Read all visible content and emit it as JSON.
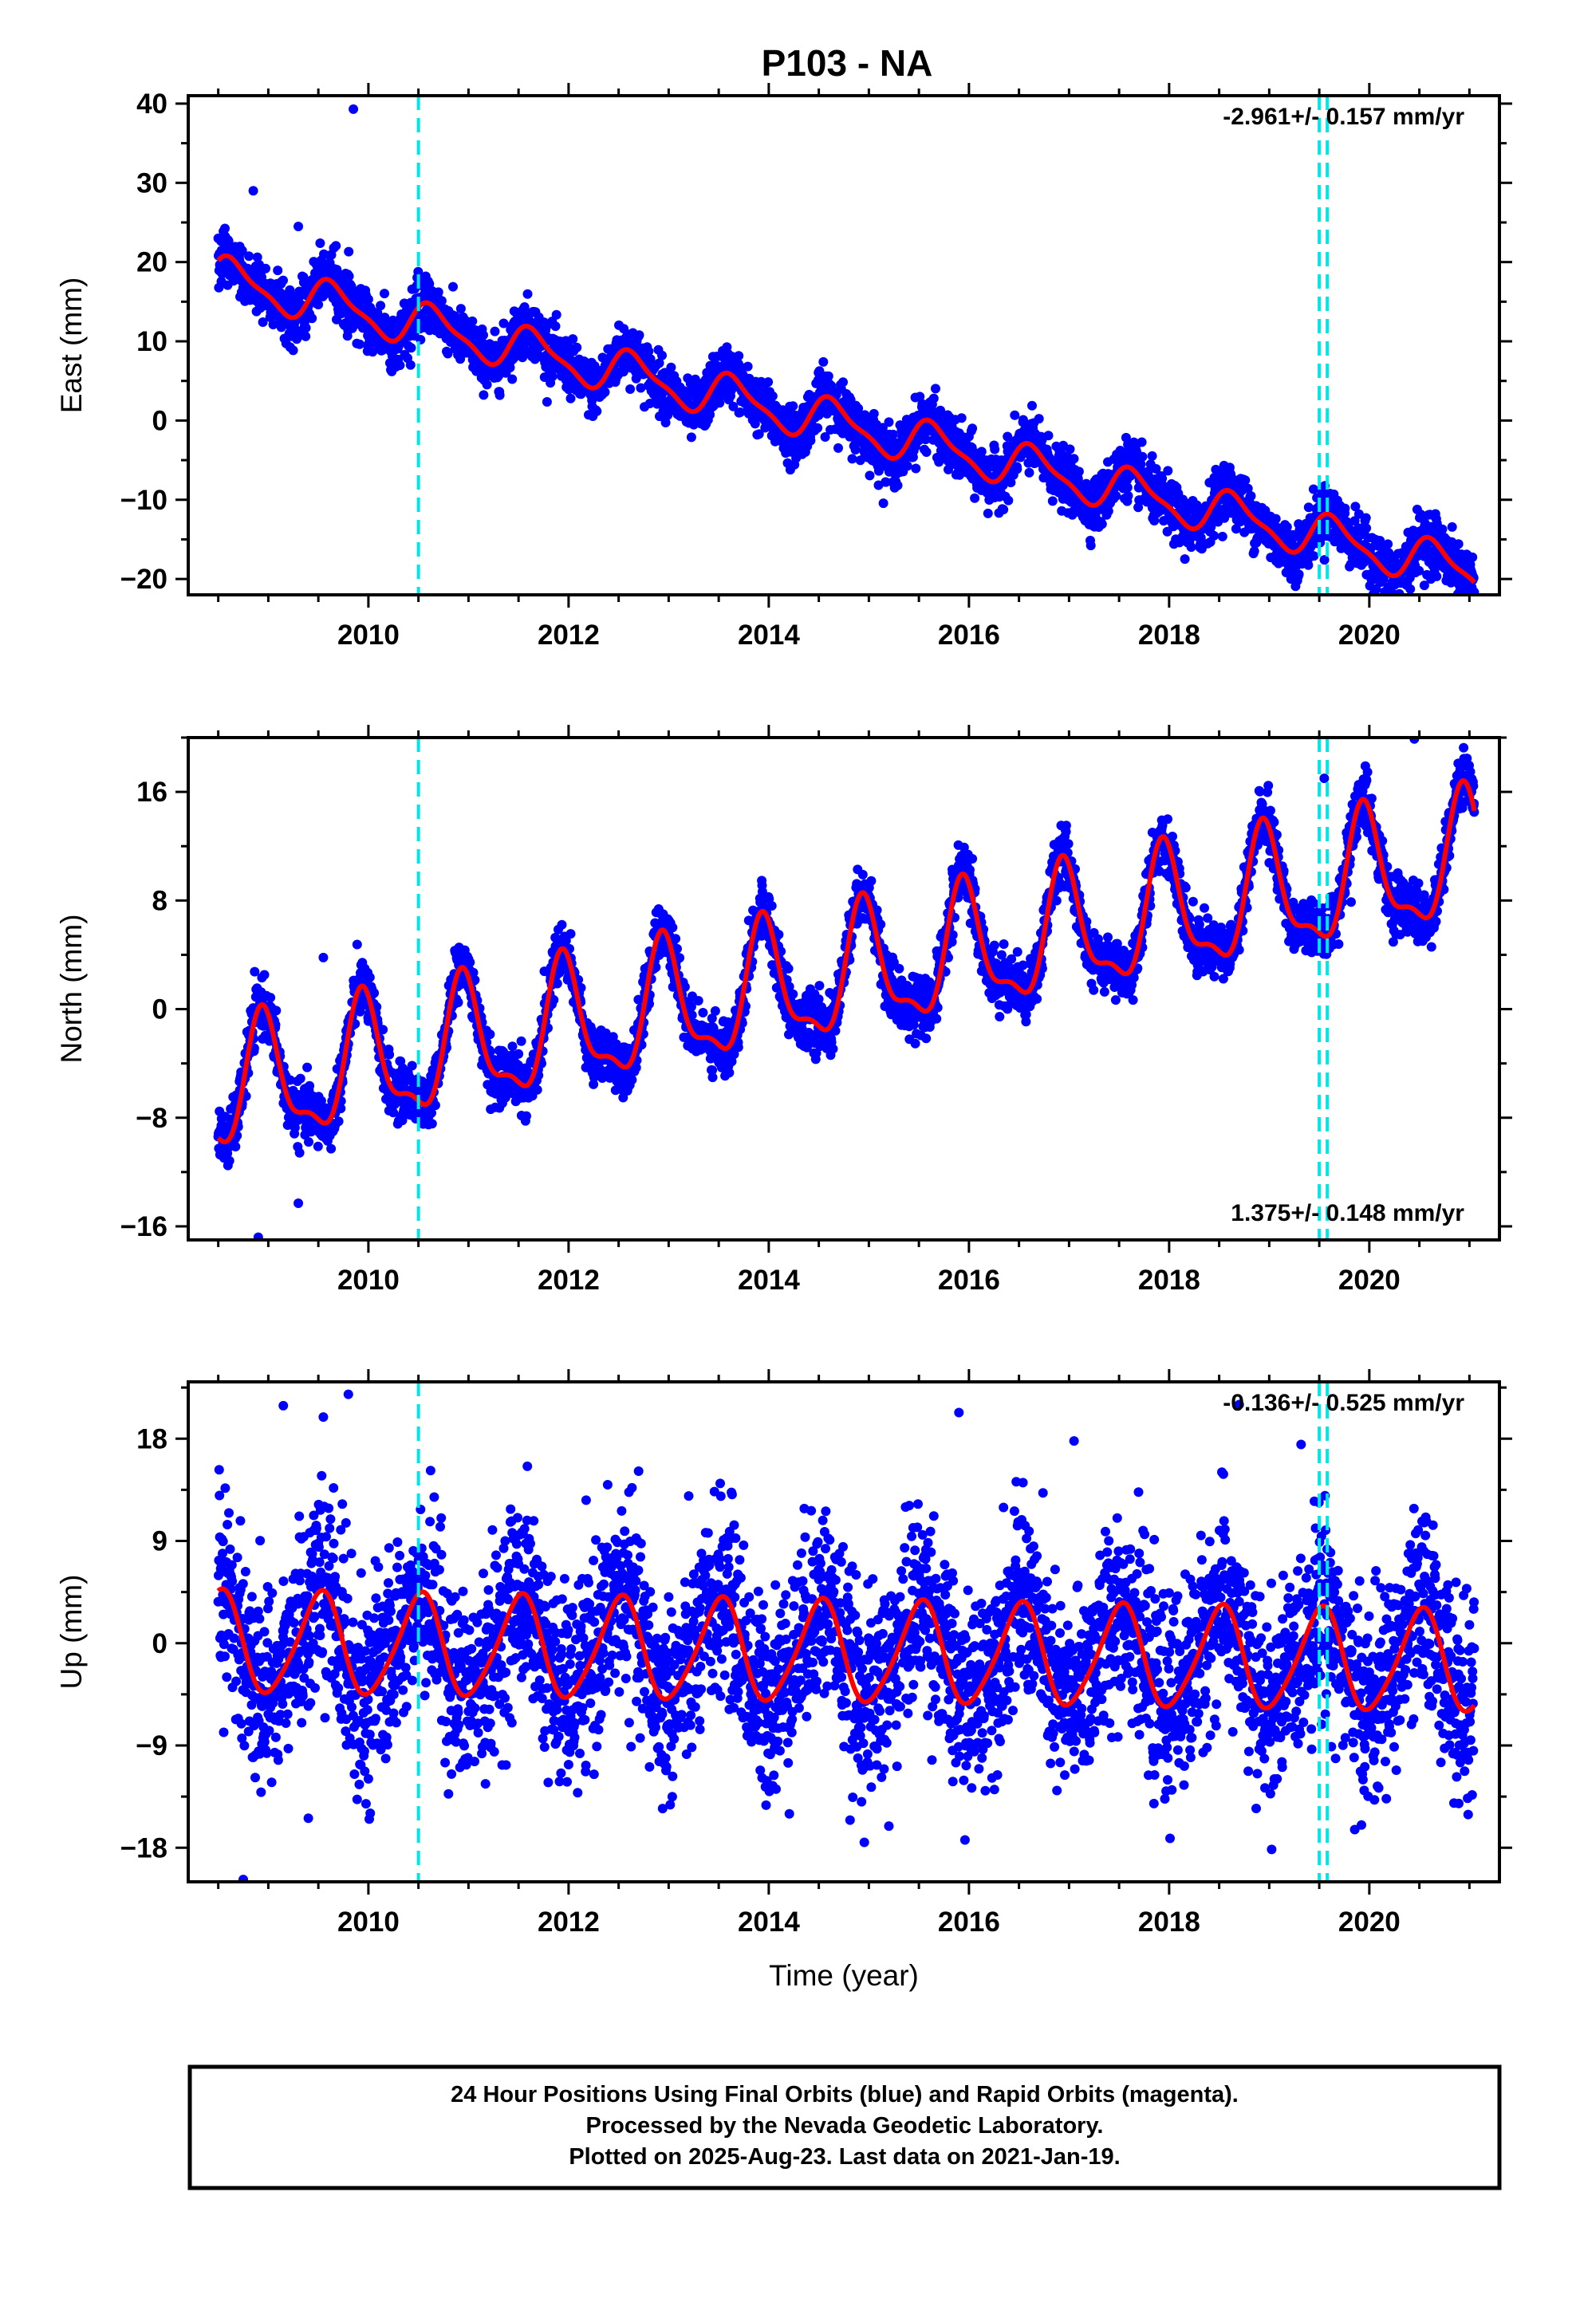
{
  "title": "P103 - NA",
  "colors": {
    "final_orbits": "#0000ff",
    "model": "#ff0000",
    "offsets": "#00e5e5",
    "frame": "#000000"
  },
  "caption": {
    "line1": "24 Hour Positions Using Final Orbits (blue) and Rapid Orbits (magenta).",
    "line2": "Processed by the Nevada Geodetic Laboratory.",
    "line3": "Plotted on 2025-Aug-23. Last data on 2021-Jan-19."
  },
  "chart_data": [
    {
      "type": "scatter",
      "component": "east",
      "ylabel": "East (mm)",
      "xlabel": "",
      "xlim": [
        2008.2,
        2021.3
      ],
      "ylim": [
        -22,
        41
      ],
      "xticks": [
        2010,
        2012,
        2014,
        2016,
        2018,
        2020
      ],
      "xtick_labels": [
        "2010",
        "2012",
        "2014",
        "2016",
        "2018",
        "2020"
      ],
      "yticks": [
        40,
        30,
        20,
        10,
        0,
        -10,
        -20
      ],
      "ytick_labels": [
        "40",
        "30",
        "20",
        "10",
        "0",
        "−10",
        "−20"
      ],
      "rate_text": "-2.961+/- 0.157 mm/yr",
      "rate_position": "top-right",
      "series_points": "Final Orbits (blue)",
      "data_start": 2008.5,
      "data_end": 2021.05,
      "model": {
        "offset": 18.0,
        "rate": -2.961,
        "annual_sin": 2.1,
        "annual_cos": 1.5,
        "semiannual_sin": 0.4,
        "semiannual_cos": 0.7
      },
      "point_scatter": 1.7,
      "outliers": [
        [
          2009.85,
          39.3
        ],
        [
          2008.85,
          29.0
        ],
        [
          2009.3,
          24.5
        ],
        [
          2010.7,
          16.2
        ],
        [
          2020.55,
          -20.8
        ]
      ],
      "offset_lines": [
        2010.5,
        2019.5,
        2019.58
      ]
    },
    {
      "type": "scatter",
      "component": "north",
      "ylabel": "North (mm)",
      "xlabel": "",
      "xlim": [
        2008.2,
        2021.3
      ],
      "ylim": [
        -17,
        20
      ],
      "xticks": [
        2010,
        2012,
        2014,
        2016,
        2018,
        2020
      ],
      "xtick_labels": [
        "2010",
        "2012",
        "2014",
        "2016",
        "2018",
        "2020"
      ],
      "yticks": [
        16,
        8,
        0,
        -8,
        -16
      ],
      "ytick_labels": [
        "16",
        "8",
        "0",
        "−8",
        "−16"
      ],
      "rate_text": "1.375+/- 0.148 mm/yr",
      "rate_position": "bottom-right",
      "series_points": "Final Orbits (blue)",
      "data_start": 2008.5,
      "data_end": 2021.05,
      "model": {
        "offset": -6.2,
        "rate": 1.375,
        "annual_sin": 1.3,
        "annual_cos": -4.2,
        "semiannual_sin": -1.3,
        "semiannual_cos": 0.9
      },
      "point_scatter": 1.0,
      "outliers": [
        [
          2008.9,
          -16.8
        ],
        [
          2009.3,
          -14.3
        ],
        [
          2009.55,
          3.8
        ],
        [
          2020.45,
          19.9
        ],
        [
          2019.55,
          17.0
        ]
      ],
      "offset_lines": [
        2010.5,
        2019.5,
        2019.58
      ]
    },
    {
      "type": "scatter",
      "component": "up",
      "ylabel": "Up (mm)",
      "xlabel": "Time (year)",
      "xlim": [
        2008.2,
        2021.3
      ],
      "ylim": [
        -21,
        23
      ],
      "xticks": [
        2010,
        2012,
        2014,
        2016,
        2018,
        2020
      ],
      "xtick_labels": [
        "2010",
        "2012",
        "2014",
        "2016",
        "2018",
        "2020"
      ],
      "yticks": [
        18,
        9,
        0,
        -9,
        -18
      ],
      "ytick_labels": [
        "18",
        "9",
        "0",
        "−9",
        "−18"
      ],
      "rate_text": "-0.136+/- 0.525 mm/yr",
      "rate_position": "top-right",
      "series_points": "Final Orbits (blue)",
      "data_start": 2008.5,
      "data_end": 2021.05,
      "model": {
        "offset": 0.0,
        "rate": -0.136,
        "annual_sin": 0.3,
        "annual_cos": 4.4,
        "semiannual_sin": 0.6,
        "semiannual_cos": 0.2
      },
      "point_scatter": 4.2,
      "outliers": [
        [
          2009.8,
          21.9
        ],
        [
          2009.15,
          20.9
        ],
        [
          2009.55,
          19.9
        ],
        [
          2015.9,
          20.3
        ],
        [
          2008.75,
          -20.8
        ],
        [
          2015.2,
          -16.1
        ],
        [
          2009.4,
          -15.4
        ],
        [
          2018.7,
          21.0
        ],
        [
          2017.05,
          17.8
        ]
      ],
      "offset_lines": [
        2010.5,
        2019.5,
        2019.58
      ]
    }
  ]
}
